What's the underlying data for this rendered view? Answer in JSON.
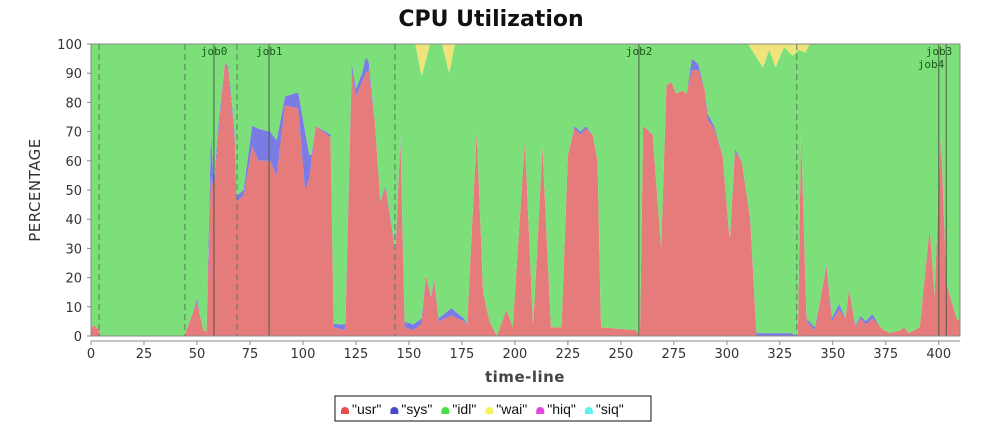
{
  "chart_data": {
    "type": "area",
    "stacked": true,
    "title": "CPU Utilization",
    "xlabel": "time-line",
    "ylabel": "PERCENTAGE",
    "xlim": [
      0,
      410
    ],
    "ylim": [
      0,
      100
    ],
    "xticks": [
      0,
      25,
      50,
      75,
      100,
      125,
      150,
      175,
      200,
      225,
      250,
      275,
      300,
      325,
      350,
      375,
      400
    ],
    "yticks": [
      0,
      10,
      20,
      30,
      40,
      50,
      60,
      70,
      80,
      90,
      100
    ],
    "grid": false,
    "legend_placement": "bottom",
    "markers": {
      "solid": [
        {
          "x": 58,
          "label": "job0"
        },
        {
          "x": 84,
          "label": "job1"
        },
        {
          "x": 258.5,
          "label": "job2"
        },
        {
          "x": 400,
          "label": "job3"
        },
        {
          "x": 403.5,
          "label": "job4"
        }
      ],
      "dashed": [
        3.8,
        44.3,
        68.9,
        143.4,
        333
      ]
    },
    "series": [
      {
        "name": "\"usr\"",
        "color": "#e57b7b",
        "legend_color": "#e84c4c",
        "points": [
          [
            0,
            2.7
          ],
          [
            1.5,
            3.6
          ],
          [
            3.8,
            2
          ],
          [
            4.5,
            0
          ],
          [
            44,
            0
          ],
          [
            50,
            11.7
          ],
          [
            53,
            2
          ],
          [
            54.5,
            1.5
          ],
          [
            56.6,
            55
          ],
          [
            58,
            50
          ],
          [
            59.9,
            68
          ],
          [
            63.2,
            94
          ],
          [
            64.8,
            91
          ],
          [
            67.9,
            67
          ],
          [
            68.6,
            46
          ],
          [
            72,
            48
          ],
          [
            76,
            65
          ],
          [
            79,
            60
          ],
          [
            84.5,
            60
          ],
          [
            87.6,
            55
          ],
          [
            91.5,
            79
          ],
          [
            97.8,
            78
          ],
          [
            101,
            50
          ],
          [
            103,
            54
          ],
          [
            106,
            72
          ],
          [
            113,
            68
          ],
          [
            114.5,
            3
          ],
          [
            120,
            2
          ],
          [
            123,
            91
          ],
          [
            125,
            82
          ],
          [
            129.6,
            90
          ],
          [
            131,
            91
          ],
          [
            134,
            73
          ],
          [
            136.5,
            46
          ],
          [
            139,
            51
          ],
          [
            143.6,
            28
          ],
          [
            146,
            67
          ],
          [
            148,
            3
          ],
          [
            152,
            2
          ],
          [
            156,
            4
          ],
          [
            158,
            21
          ],
          [
            160.5,
            13
          ],
          [
            162,
            19
          ],
          [
            164,
            5
          ],
          [
            170,
            7
          ],
          [
            176,
            5
          ],
          [
            177.5,
            4
          ],
          [
            182,
            70
          ],
          [
            185,
            15
          ],
          [
            188,
            5
          ],
          [
            191.5,
            0
          ],
          [
            196,
            9
          ],
          [
            199,
            3
          ],
          [
            204.7,
            67
          ],
          [
            208.6,
            3
          ],
          [
            213,
            65
          ],
          [
            217,
            3
          ],
          [
            222,
            3
          ],
          [
            225,
            62
          ],
          [
            228,
            71
          ],
          [
            231,
            69
          ],
          [
            233.5,
            71
          ],
          [
            236.7,
            69
          ],
          [
            239,
            60
          ],
          [
            240.6,
            3
          ],
          [
            257,
            2
          ],
          [
            259,
            0
          ],
          [
            260.5,
            72
          ],
          [
            265,
            69
          ],
          [
            269,
            30
          ],
          [
            271.5,
            86
          ],
          [
            274,
            87
          ],
          [
            276,
            83
          ],
          [
            279,
            84
          ],
          [
            281,
            83
          ],
          [
            283.5,
            91
          ],
          [
            286.6,
            91
          ],
          [
            289.7,
            84
          ],
          [
            291,
            74
          ],
          [
            294,
            71
          ],
          [
            298,
            62
          ],
          [
            301.4,
            32
          ],
          [
            303.8,
            63
          ],
          [
            307,
            60
          ],
          [
            311,
            40
          ],
          [
            314,
            0
          ],
          [
            333.5,
            0
          ],
          [
            335,
            70
          ],
          [
            337.6,
            5
          ],
          [
            341.5,
            2
          ],
          [
            347,
            24
          ],
          [
            349.6,
            5
          ],
          [
            353,
            9
          ],
          [
            356,
            6
          ],
          [
            357.6,
            16
          ],
          [
            360.7,
            3
          ],
          [
            363,
            6
          ],
          [
            365.6,
            4
          ],
          [
            368.7,
            6
          ],
          [
            374,
            2
          ],
          [
            377,
            1
          ],
          [
            382,
            2
          ],
          [
            383.5,
            3
          ],
          [
            385.8,
            1
          ],
          [
            391,
            3
          ],
          [
            395.7,
            37
          ],
          [
            398,
            14
          ],
          [
            401,
            69
          ],
          [
            403.6,
            18
          ],
          [
            408.4,
            6
          ],
          [
            410,
            5
          ]
        ]
      },
      {
        "name": "\"sys\"",
        "color": "#7b7be6",
        "legend_color": "#4848c8",
        "points": [
          [
            0,
            0
          ],
          [
            48,
            0
          ],
          [
            50,
            1.2
          ],
          [
            52,
            0
          ],
          [
            54.5,
            0
          ],
          [
            56.6,
            15
          ],
          [
            58,
            2
          ],
          [
            60,
            3
          ],
          [
            63,
            0
          ],
          [
            66,
            2
          ],
          [
            68.6,
            2
          ],
          [
            72,
            2
          ],
          [
            76,
            7
          ],
          [
            79,
            11
          ],
          [
            84.5,
            10
          ],
          [
            87.6,
            12
          ],
          [
            91.5,
            3
          ],
          [
            97.8,
            5.5
          ],
          [
            101,
            20
          ],
          [
            104,
            2
          ],
          [
            106,
            0
          ],
          [
            128,
            3
          ],
          [
            129.6,
            5.5
          ],
          [
            131,
            3
          ],
          [
            134,
            0
          ],
          [
            150,
            2
          ],
          [
            152,
            2
          ],
          [
            156,
            2
          ],
          [
            158,
            0
          ],
          [
            164,
            1
          ],
          [
            170,
            2.5
          ],
          [
            176,
            1
          ],
          [
            178,
            0
          ],
          [
            226,
            0
          ],
          [
            229,
            1
          ],
          [
            233,
            1
          ],
          [
            236,
            0
          ],
          [
            281,
            0
          ],
          [
            283.5,
            4
          ],
          [
            286.6,
            2
          ],
          [
            289.7,
            0
          ],
          [
            291,
            2
          ],
          [
            294,
            1
          ],
          [
            298,
            0
          ],
          [
            303.8,
            1
          ],
          [
            307,
            0
          ],
          [
            314,
            1
          ],
          [
            330,
            1
          ],
          [
            334,
            0
          ],
          [
            337.6,
            1
          ],
          [
            341.5,
            1
          ],
          [
            344,
            0
          ],
          [
            353,
            2
          ],
          [
            356,
            0
          ],
          [
            368.7,
            1.5
          ],
          [
            372,
            0
          ],
          [
            410,
            0
          ]
        ]
      },
      {
        "name": "\"idl\"",
        "color": "#7ddf7a",
        "legend_color": "#48e048"
      },
      {
        "name": "\"wai\"",
        "color": "#eee47a",
        "legend_color": "#f4f460",
        "points": [
          [
            0,
            0
          ],
          [
            153,
            0
          ],
          [
            156,
            11
          ],
          [
            160,
            0
          ],
          [
            165.6,
            0
          ],
          [
            169,
            10
          ],
          [
            171.7,
            0
          ],
          [
            310,
            0
          ],
          [
            317,
            8
          ],
          [
            320,
            2
          ],
          [
            323,
            8
          ],
          [
            327,
            1
          ],
          [
            331,
            4
          ],
          [
            334,
            2
          ],
          [
            337,
            3
          ],
          [
            339,
            0
          ],
          [
            410,
            0
          ]
        ]
      },
      {
        "name": "\"hiq\"",
        "color": "#e060e0",
        "legend_color": "#e048e0",
        "points": []
      },
      {
        "name": "\"siq\"",
        "color": "#70f0f0",
        "legend_color": "#60f0f0",
        "points": []
      }
    ]
  }
}
